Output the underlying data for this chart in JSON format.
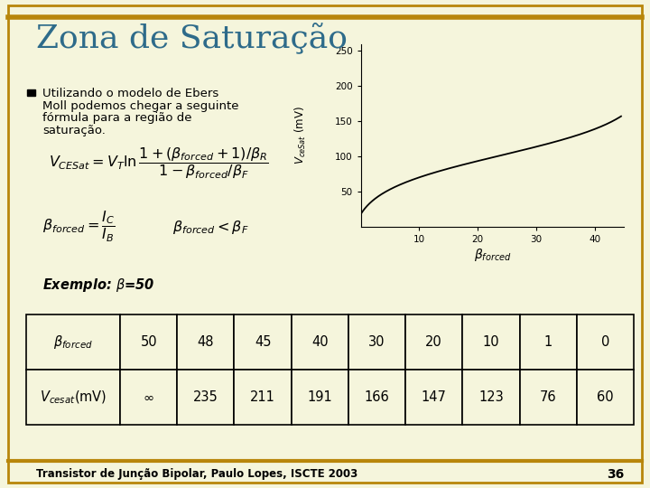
{
  "title": "Zona de Saturação",
  "title_color": "#2E6B8A",
  "background_color": "#F5F5DC",
  "border_color": "#B8860B",
  "bullet_text_line1": "Utilizando o modelo de Ebers",
  "bullet_text_line2": "Moll podemos chegar a seguinte",
  "bullet_text_line3": "fórmula para a região de",
  "bullet_text_line4": "saturação.",
  "formula1": "$V_{CESat} = V_T \\ln\\dfrac{1+(\\beta_{forced}+1)/\\beta_R}{1-\\beta_{forced}/\\beta_F}$",
  "formula2": "$\\beta_{forced} = \\dfrac{I_C}{I_B}$",
  "formula3": "$\\beta_{forced} < \\beta_F$",
  "example_text": "Exemplo: $\\beta$=50",
  "footer_text": "Transistor de Junção Bipolar, Paulo Lopes, ISCTE 2003",
  "footer_page": "36",
  "table_beta": [
    "$\\beta_{forced}$",
    "50",
    "48",
    "45",
    "40",
    "30",
    "20",
    "10",
    "1",
    "0"
  ],
  "table_vce": [
    "$V_{cesat}$(mV)",
    "$\\infty$",
    "235",
    "211",
    "191",
    "166",
    "147",
    "123",
    "76",
    "60"
  ],
  "plot_xlabel": "$\\beta_{forced}$",
  "plot_ylabel": "$V_{ceSat}$ (mV)",
  "plot_beta_F": 50,
  "plot_beta_R": 1,
  "plot_VT": 26,
  "plot_xlim": [
    0,
    45
  ],
  "plot_ylim": [
    0,
    260
  ],
  "plot_xticks": [
    10,
    20,
    30,
    40
  ],
  "plot_yticks": [
    50,
    100,
    150,
    200,
    250
  ]
}
